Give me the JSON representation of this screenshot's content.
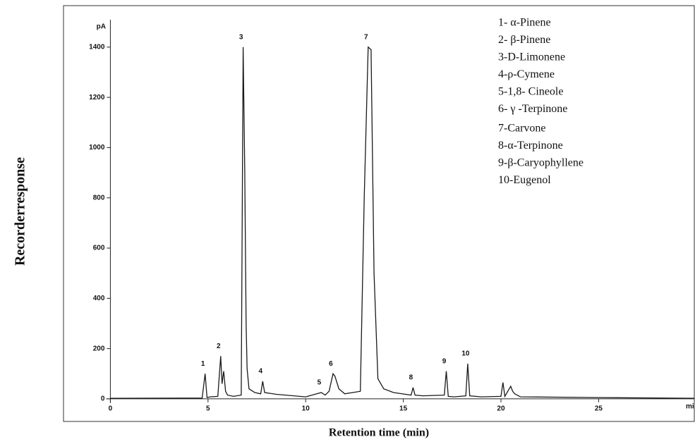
{
  "chart_data": {
    "type": "line",
    "y_unit": "pA",
    "x_unit": "mi",
    "ylabel": "Recorderresponse",
    "xlabel": "Retention time (min)",
    "color": "#1a1a1a",
    "xlim": [
      -2.4,
      29.9
    ],
    "ylim": [
      -90,
      1565
    ],
    "xticks": [
      0,
      5,
      10,
      15,
      20,
      25
    ],
    "yticks": [
      0,
      200,
      400,
      600,
      800,
      1000,
      1200,
      1400
    ],
    "grid": false,
    "series": [
      {
        "x": [
          0,
          4.7,
          4.85,
          4.95,
          5.1,
          5.5,
          5.65,
          5.72,
          5.8,
          5.9,
          6.0,
          6.3,
          6.7,
          6.8,
          6.88,
          6.95,
          7.0,
          7.1,
          7.4,
          7.7,
          7.8,
          7.9,
          8.5,
          10,
          10.8,
          11.0,
          11.2,
          11.4,
          11.5,
          11.7,
          12,
          12.8,
          13.0,
          13.2,
          13.35,
          13.5,
          13.7,
          14.0,
          14.5,
          15.4,
          15.5,
          15.6,
          16,
          17.1,
          17.2,
          17.3,
          17.6,
          18.2,
          18.3,
          18.4,
          19,
          20,
          20.1,
          20.2,
          20.5,
          20.6,
          20.7,
          21,
          25,
          29.9
        ],
        "values": [
          2,
          3,
          100,
          5,
          8,
          10,
          170,
          60,
          110,
          30,
          15,
          10,
          15,
          1400,
          900,
          300,
          120,
          40,
          25,
          20,
          70,
          25,
          18,
          8,
          25,
          15,
          30,
          100,
          90,
          40,
          20,
          30,
          800,
          1400,
          1390,
          500,
          80,
          40,
          25,
          15,
          45,
          15,
          12,
          15,
          110,
          10,
          8,
          12,
          140,
          12,
          8,
          10,
          65,
          10,
          50,
          30,
          20,
          8,
          5,
          2
        ]
      }
    ],
    "peaks": [
      {
        "label": "1",
        "x": 4.85,
        "y": 100
      },
      {
        "label": "2",
        "x": 5.65,
        "y": 170
      },
      {
        "label": "3",
        "x": 6.8,
        "y": 1400
      },
      {
        "label": "4",
        "x": 7.8,
        "y": 70
      },
      {
        "label": "5",
        "x": 10.8,
        "y": 25
      },
      {
        "label": "6",
        "x": 11.4,
        "y": 100
      },
      {
        "label": "7",
        "x": 13.2,
        "y": 1400
      },
      {
        "label": "8",
        "x": 15.5,
        "y": 45
      },
      {
        "label": "9",
        "x": 17.2,
        "y": 110
      },
      {
        "label": "10",
        "x": 18.3,
        "y": 140
      }
    ],
    "legend_entries": [
      "1- α-Pinene",
      "2- β-Pinene",
      "3-D-Limonene",
      "4-ρ-Cymene",
      "5-1,8- Cineole",
      "6- γ -Terpinone",
      "7-Carvone",
      "8-α-Terpinone",
      "9-β-Caryophyllene",
      "10-Eugenol"
    ]
  }
}
